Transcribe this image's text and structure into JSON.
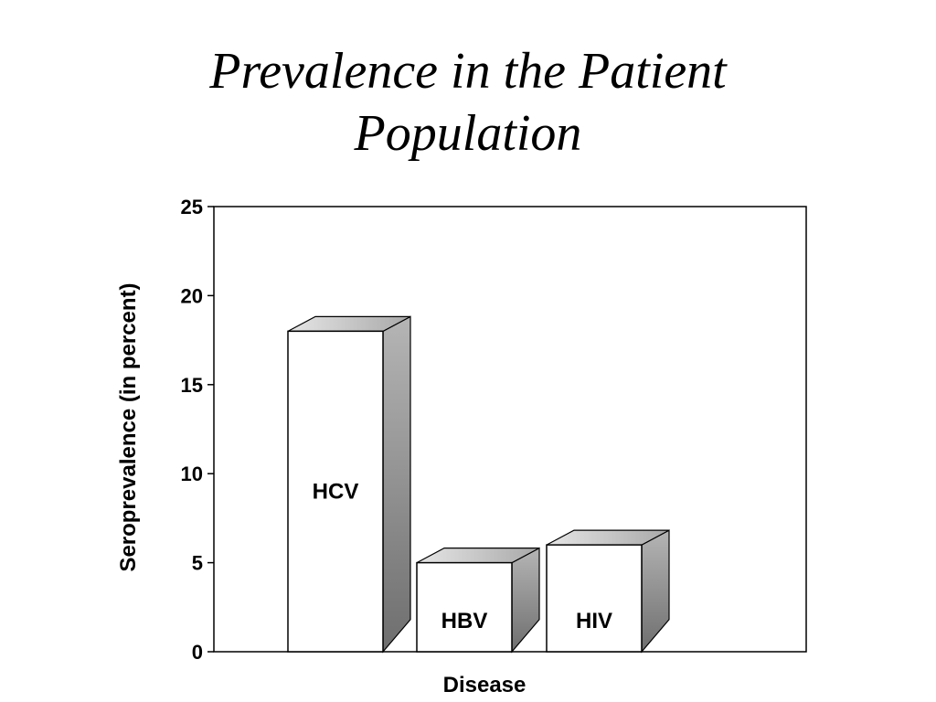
{
  "slide": {
    "title_line1": "Prevalence in the Patient",
    "title_line2": "Population"
  },
  "chart_data": {
    "type": "bar",
    "style": "3d",
    "categories": [
      "HCV",
      "HBV",
      "HIV"
    ],
    "values": [
      18,
      5,
      6
    ],
    "xlabel": "Disease",
    "ylabel": "Seroprevalence (in percent)",
    "ylim": [
      0,
      25
    ],
    "yticks": [
      0,
      5,
      10,
      15,
      20,
      25
    ],
    "grid": false,
    "legend": "none",
    "colors": {
      "front": "#ffffff",
      "top": "#cfcfcf",
      "side": "#8c8c8c",
      "axis": "#000000"
    }
  }
}
